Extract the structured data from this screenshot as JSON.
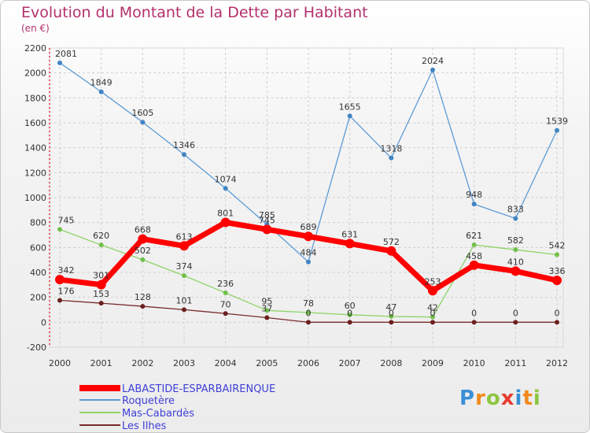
{
  "title": "Evolution du Montant de la Dette par Habitant",
  "subtitle": "(en €)",
  "logo_text": "Proxiti",
  "colors": {
    "title": "#b3306d",
    "grid": "#cfcfcf",
    "axis": "#e00000"
  },
  "chart_data": {
    "type": "line",
    "categories": [
      "2000",
      "2001",
      "2002",
      "2003",
      "2004",
      "2005",
      "2006",
      "2007",
      "2008",
      "2009",
      "2010",
      "2011",
      "2012"
    ],
    "ylim": [
      -200,
      2200
    ],
    "yticks": [
      -200,
      0,
      200,
      400,
      600,
      800,
      1000,
      1200,
      1400,
      1600,
      1800,
      2000,
      2200
    ],
    "grid": true,
    "legend_position": "bottom-left",
    "series": [
      {
        "name": "LABASTIDE-ESPARBAIRENQUE",
        "color": "#ff0000",
        "width": 7,
        "values": [
          342,
          301,
          668,
          613,
          801,
          745,
          689,
          631,
          572,
          253,
          458,
          410,
          336
        ]
      },
      {
        "name": "Roquetère",
        "color": "#5b9bd5",
        "width": 1.3,
        "values": [
          2081,
          1849,
          1605,
          1346,
          1074,
          785,
          484,
          1655,
          1318,
          2024,
          948,
          833,
          1539
        ]
      },
      {
        "name": "Mas-Cabardès",
        "color": "#8ed468",
        "width": 1.3,
        "values": [
          745,
          620,
          502,
          374,
          236,
          95,
          78,
          60,
          47,
          42,
          621,
          582,
          542
        ]
      },
      {
        "name": "Les Ilhes",
        "color": "#7a2a2a",
        "width": 1.3,
        "values": [
          176,
          153,
          128,
          101,
          70,
          37,
          0,
          0,
          0,
          0,
          0,
          0,
          0
        ]
      }
    ]
  }
}
